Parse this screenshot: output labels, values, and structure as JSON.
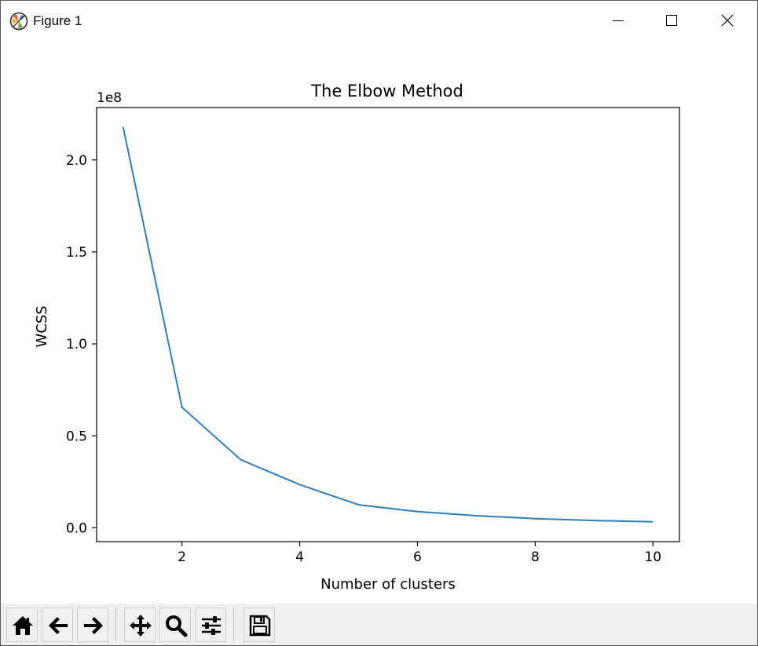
{
  "window": {
    "title": "Figure 1"
  },
  "toolbar": {
    "items": [
      "home-icon",
      "back-arrow-icon",
      "forward-arrow-icon",
      "pan-icon",
      "zoom-icon",
      "configure-subplots-icon",
      "save-icon"
    ]
  },
  "colors": {
    "line": "#2f7ebc",
    "axes": "#000000",
    "toolbar_bg": "#f0f0f0"
  },
  "chart_data": {
    "type": "line",
    "title": "The Elbow Method",
    "xlabel": "Number of clusters",
    "ylabel": "WCSS",
    "y_offset_text": "1e8",
    "x": [
      1,
      2,
      3,
      4,
      5,
      6,
      7,
      8,
      9,
      10
    ],
    "series": [
      {
        "values": [
          2.18,
          0.655,
          0.37,
          0.235,
          0.125,
          0.088,
          0.066,
          0.05,
          0.04,
          0.033
        ]
      }
    ],
    "xlim": [
      0.55,
      10.45
    ],
    "ylim": [
      -0.075,
      2.285
    ],
    "xticks": [
      2,
      4,
      6,
      8,
      10
    ],
    "xtick_labels": [
      "2",
      "4",
      "6",
      "8",
      "10"
    ],
    "yticks": [
      0.0,
      0.5,
      1.0,
      1.5,
      2.0
    ],
    "ytick_labels": [
      "0.0",
      "0.5",
      "1.0",
      "1.5",
      "2.0"
    ],
    "grid": false,
    "legend": "none"
  }
}
